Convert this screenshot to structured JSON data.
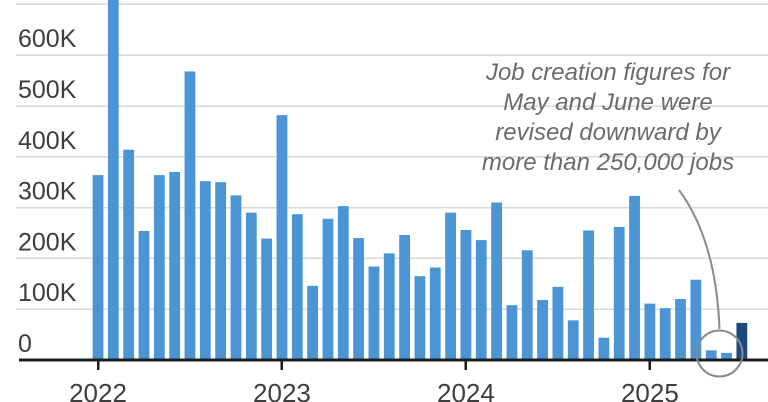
{
  "chart_data": {
    "type": "bar",
    "description": "Monthly job creation, thousands of jobs",
    "value_unit": "thousands_of_jobs",
    "categories": [
      "Jan 2022",
      "Feb 2022",
      "Mar 2022",
      "Apr 2022",
      "May 2022",
      "Jun 2022",
      "Jul 2022",
      "Aug 2022",
      "Sep 2022",
      "Oct 2022",
      "Nov 2022",
      "Dec 2022",
      "Jan 2023",
      "Feb 2023",
      "Mar 2023",
      "Apr 2023",
      "May 2023",
      "Jun 2023",
      "Jul 2023",
      "Aug 2023",
      "Sep 2023",
      "Oct 2023",
      "Nov 2023",
      "Dec 2023",
      "Jan 2024",
      "Feb 2024",
      "Mar 2024",
      "Apr 2024",
      "May 2024",
      "Jun 2024",
      "Jul 2024",
      "Aug 2024",
      "Sep 2024",
      "Oct 2024",
      "Nov 2024",
      "Dec 2024",
      "Jan 2025",
      "Feb 2025",
      "Mar 2025",
      "Apr 2025",
      "May 2025",
      "Jun 2025",
      "Jul 2025"
    ],
    "values": [
      364,
      714,
      414,
      254,
      364,
      370,
      568,
      352,
      350,
      324,
      290,
      239,
      482,
      287,
      146,
      278,
      303,
      240,
      184,
      210,
      246,
      165,
      182,
      290,
      256,
      236,
      310,
      108,
      216,
      118,
      144,
      78,
      255,
      44,
      262,
      323,
      111,
      102,
      120,
      158,
      19,
      14,
      73
    ],
    "ylim": [
      0,
      700
    ],
    "grid": true,
    "gridline_values": [
      100,
      200,
      300,
      400,
      500,
      600,
      700
    ],
    "y_ticks": [
      {
        "value": 0,
        "label": "0"
      },
      {
        "value": 100,
        "label": "100K"
      },
      {
        "value": 200,
        "label": "200K"
      },
      {
        "value": 300,
        "label": "300K"
      },
      {
        "value": 400,
        "label": "400K"
      },
      {
        "value": 500,
        "label": "500K"
      },
      {
        "value": 600,
        "label": "600K"
      }
    ],
    "year_ticks": [
      {
        "label": "2022",
        "month_index": 0
      },
      {
        "label": "2023",
        "month_index": 12
      },
      {
        "label": "2024",
        "month_index": 24
      },
      {
        "label": "2025",
        "month_index": 36
      }
    ],
    "highlight": {
      "dark_bar_index": 42,
      "dark_bar_month": "Jul 2025",
      "circled_indices": [
        40,
        41
      ],
      "circled_months": [
        "May 2025",
        "Jun 2025"
      ]
    }
  },
  "annotation": {
    "lines": [
      "Job creation figures for",
      "May and June were",
      "revised downward by",
      "more than 250,000 jobs"
    ]
  },
  "style": {
    "bar_color": "#4b95d5",
    "bar_dark_color": "#1d4a7e",
    "grid_color": "#dadada",
    "axis_color": "#1c1c1c",
    "label_color": "#3d3d3d",
    "annotation_color": "#6b6b6b",
    "pointer_color": "#8a8a8a",
    "background": "#ffffff"
  }
}
